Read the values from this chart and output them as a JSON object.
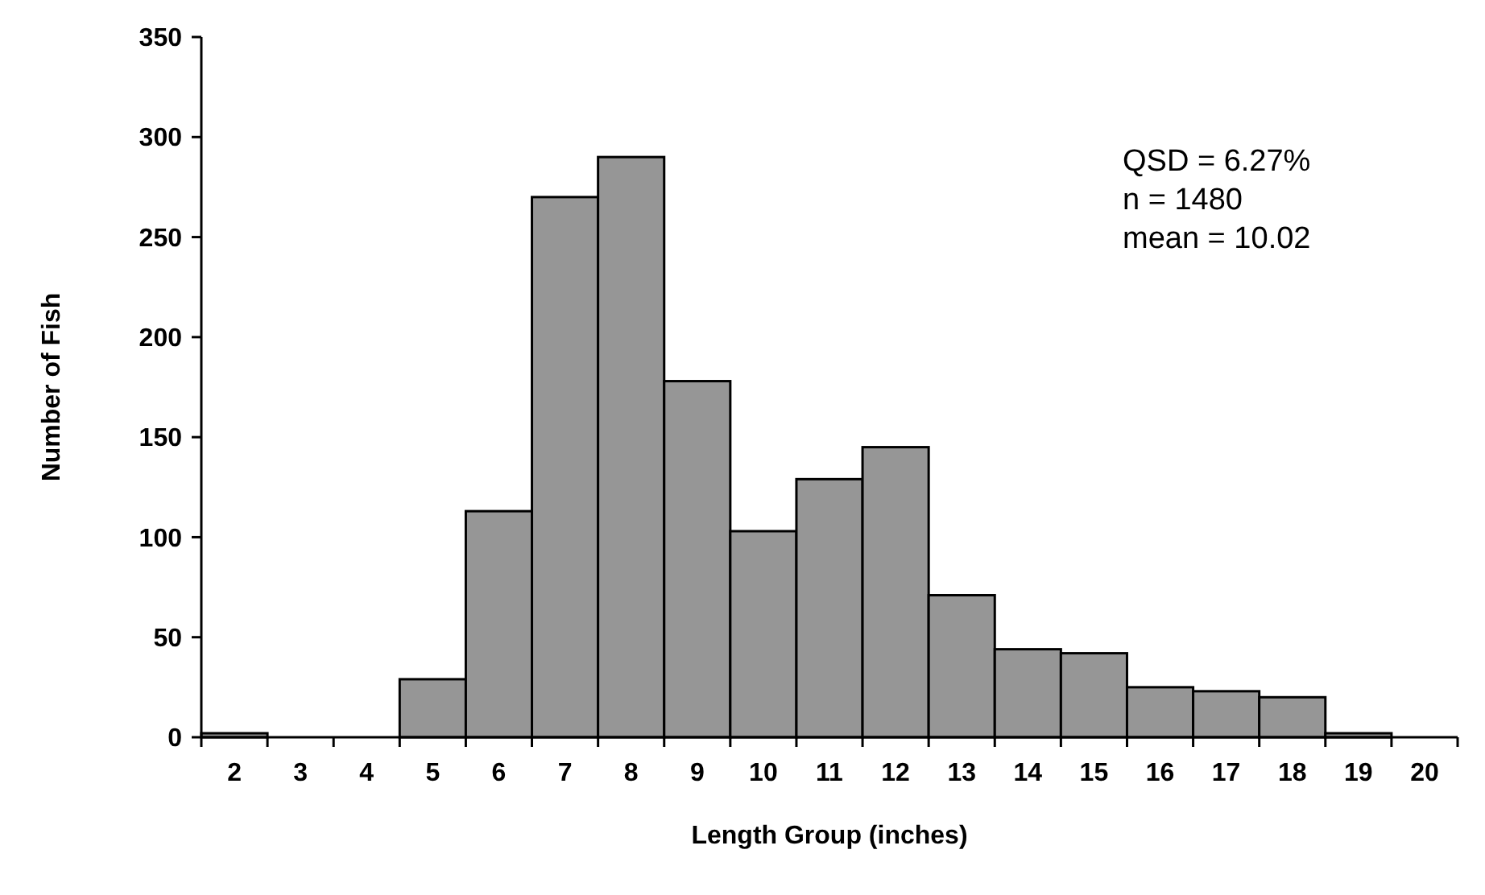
{
  "chart_data": {
    "type": "bar",
    "xlabel": "Length Group (inches)",
    "ylabel": "Number of Fish",
    "categories": [
      "2",
      "3",
      "4",
      "5",
      "6",
      "7",
      "8",
      "9",
      "10",
      "11",
      "12",
      "13",
      "14",
      "15",
      "16",
      "17",
      "18",
      "19",
      "20"
    ],
    "values": [
      2,
      0,
      0,
      29,
      113,
      270,
      290,
      178,
      103,
      129,
      145,
      71,
      44,
      42,
      25,
      23,
      20,
      2,
      0
    ],
    "color": "#969696",
    "ylim": [
      0,
      350
    ],
    "yticks": [
      0,
      50,
      100,
      150,
      200,
      250,
      300,
      350
    ],
    "grid": false,
    "annotations": [
      "QSD = 6.27%",
      "n = 1480",
      "mean = 10.02"
    ]
  }
}
